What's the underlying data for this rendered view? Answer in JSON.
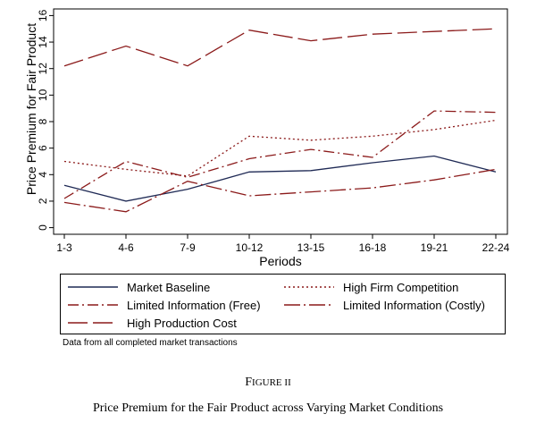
{
  "chart_data": {
    "type": "line",
    "title": "",
    "xlabel": "Periods",
    "ylabel": "Price Premium for Fair Product",
    "categories": [
      "1-3",
      "4-6",
      "7-9",
      "10-12",
      "13-15",
      "16-18",
      "19-21",
      "22-24"
    ],
    "yticks": [
      0,
      2,
      4,
      6,
      8,
      10,
      12,
      14,
      16
    ],
    "ylim": [
      -0.5,
      16.5
    ],
    "grid": false,
    "legend_placement": "below",
    "series": [
      {
        "name": "Market Baseline",
        "values": [
          3.2,
          2.0,
          2.9,
          4.2,
          4.3,
          4.9,
          5.4,
          4.2
        ],
        "color": "#1f2a55",
        "style": "solid"
      },
      {
        "name": "High Firm Competition",
        "values": [
          5.0,
          4.4,
          3.9,
          6.9,
          6.6,
          6.9,
          7.4,
          8.1
        ],
        "color": "#8b1a1a",
        "style": "dotted"
      },
      {
        "name": "Limited Information (Free)",
        "values": [
          2.2,
          5.0,
          3.8,
          5.2,
          5.9,
          5.3,
          8.8,
          8.7
        ],
        "color": "#8b1a1a",
        "style": "dashdot"
      },
      {
        "name": "Limited Information (Costly)",
        "values": [
          1.9,
          1.2,
          3.5,
          2.4,
          2.7,
          3.0,
          3.6,
          4.4
        ],
        "color": "#8b1a1a",
        "style": "longdashdot"
      },
      {
        "name": "High Production Cost",
        "values": [
          12.2,
          13.7,
          12.2,
          14.9,
          14.1,
          14.6,
          14.8,
          15.0
        ],
        "color": "#8b1a1a",
        "style": "longdash"
      }
    ]
  },
  "note": "Data from all completed market transactions",
  "figure_label": {
    "first": "F",
    "rest": "IGURE II"
  },
  "caption": "Price Premium for the Fair Product across Varying Market Conditions"
}
